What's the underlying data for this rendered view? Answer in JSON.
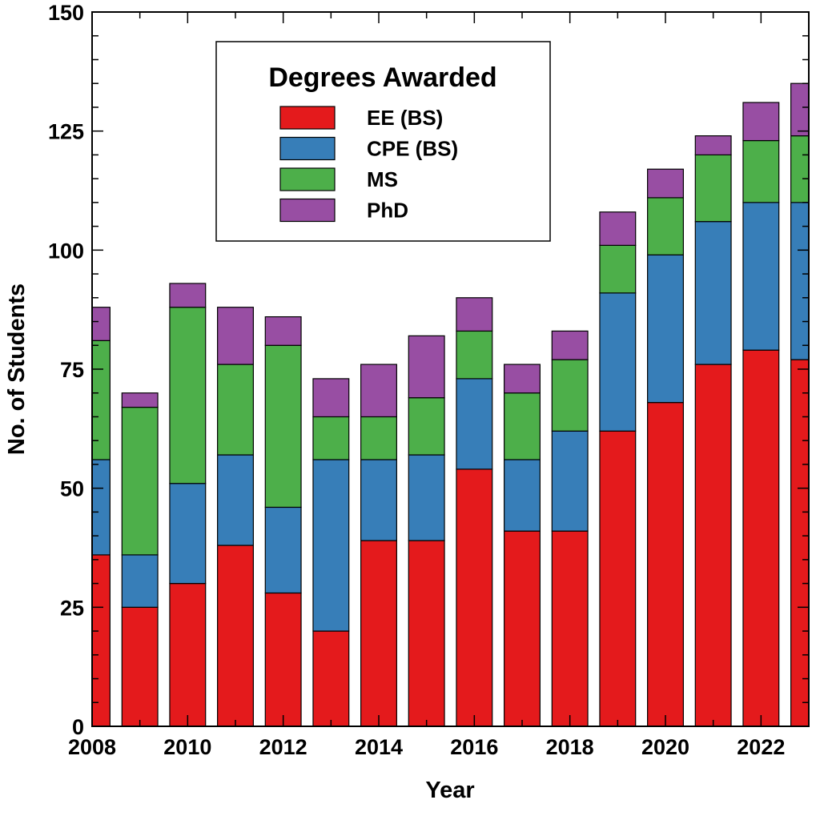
{
  "chart_data": {
    "type": "bar",
    "stacked": true,
    "xlabel": "Year",
    "ylabel": "No. of Students",
    "xlim": [
      2008,
      2023
    ],
    "ylim": [
      0,
      150
    ],
    "x_ticks": [
      "2008",
      "2010",
      "2012",
      "2014",
      "2016",
      "2018",
      "2020",
      "2022"
    ],
    "y_ticks": [
      "0",
      "25",
      "50",
      "75",
      "100",
      "125",
      "150"
    ],
    "grid": false,
    "legend": {
      "title": "Degrees Awarded",
      "placement": "top-left"
    },
    "categories": [
      2008,
      2009,
      2010,
      2011,
      2012,
      2013,
      2014,
      2015,
      2016,
      2017,
      2018,
      2019,
      2020,
      2021,
      2022,
      2023
    ],
    "series": [
      {
        "name": "EE (BS)",
        "color": "#e41a1c",
        "values": [
          36,
          25,
          30,
          38,
          28,
          20,
          39,
          39,
          54,
          41,
          41,
          62,
          68,
          76,
          79,
          77
        ]
      },
      {
        "name": "CPE (BS)",
        "color": "#377eb8",
        "values": [
          20,
          11,
          21,
          19,
          18,
          36,
          17,
          18,
          19,
          15,
          21,
          29,
          31,
          30,
          31,
          33
        ]
      },
      {
        "name": "MS",
        "color": "#4daf4a",
        "values": [
          25,
          31,
          37,
          19,
          34,
          9,
          9,
          12,
          10,
          14,
          15,
          10,
          12,
          14,
          13,
          14
        ]
      },
      {
        "name": "PhD",
        "color": "#984ea3",
        "values": [
          7,
          3,
          5,
          12,
          6,
          8,
          11,
          13,
          7,
          6,
          6,
          7,
          6,
          4,
          8,
          11
        ]
      }
    ]
  }
}
